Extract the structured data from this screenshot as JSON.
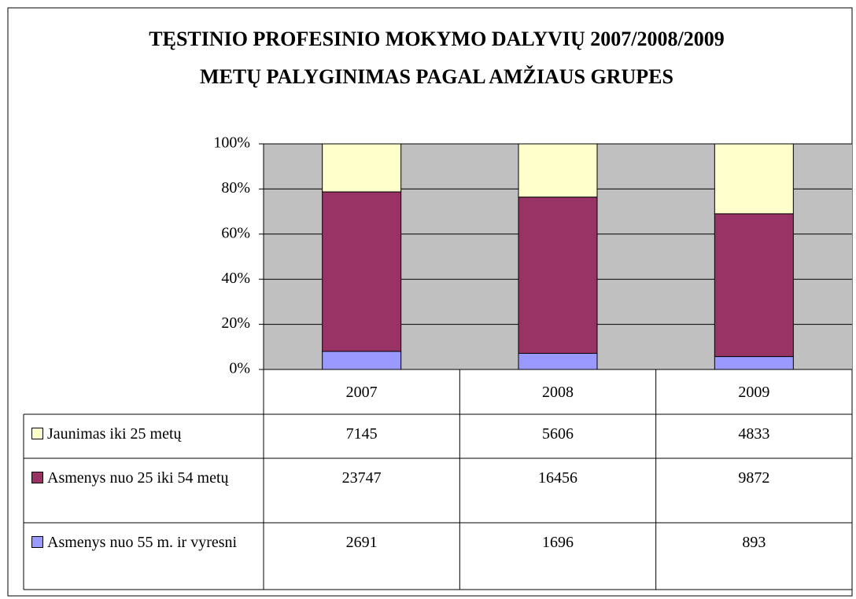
{
  "chart_data": {
    "type": "stacked_percent_bar",
    "title": [
      "TĘSTINIO PROFESINIO MOKYMO DALYVIŲ 2007/2008/2009",
      "METŲ PALYGINIMAS PAGAL AMŽIAUS GRUPES"
    ],
    "categories": [
      "2007",
      "2008",
      "2009"
    ],
    "series": [
      {
        "name": "Jaunimas iki 25 metų",
        "color": "#ffffcc",
        "values": [
          7145,
          5606,
          4833
        ]
      },
      {
        "name": "Asmenys nuo 25 iki 54 metų",
        "color": "#993366",
        "values": [
          23747,
          16456,
          9872
        ]
      },
      {
        "name": "Asmenys nuo 55 m. ir vyresni",
        "color": "#9999ff",
        "values": [
          2691,
          1696,
          893
        ]
      }
    ],
    "ylim": [
      0,
      100
    ],
    "yticks": [
      {
        "value": 0,
        "label": "0%"
      },
      {
        "value": 20,
        "label": "20%"
      },
      {
        "value": 40,
        "label": "40%"
      },
      {
        "value": 60,
        "label": "60%"
      },
      {
        "value": 80,
        "label": "80%"
      },
      {
        "value": 100,
        "label": "100%"
      }
    ],
    "grid": true,
    "plot_background": "#c0c0c0"
  }
}
